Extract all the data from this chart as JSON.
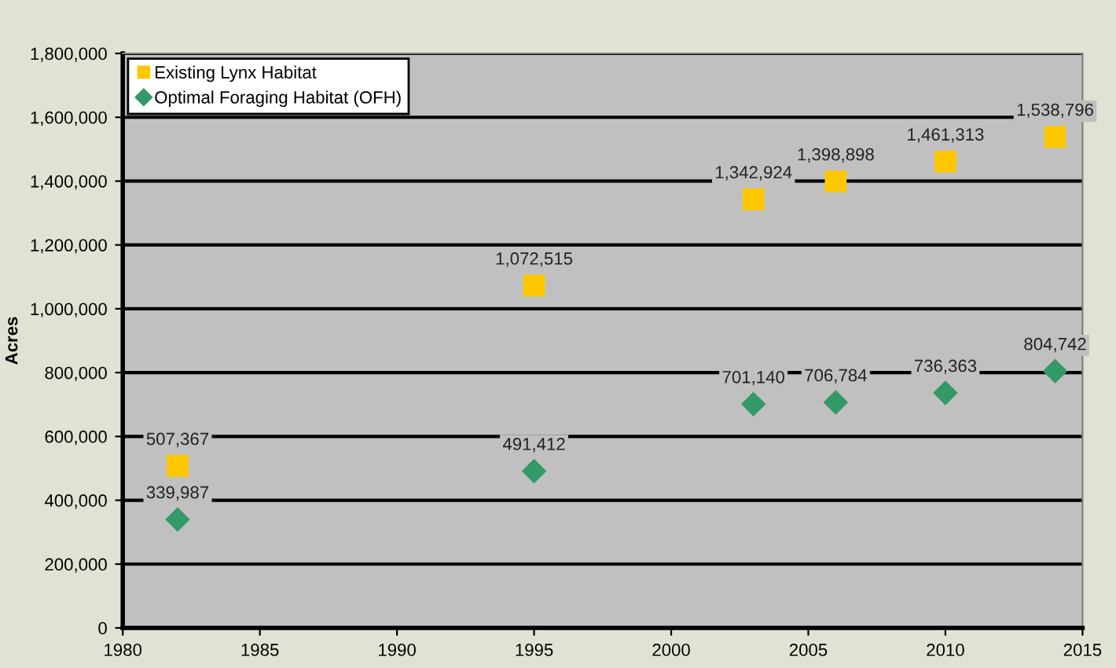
{
  "chart_data": {
    "type": "scatter",
    "ylabel": "Acres",
    "x": [
      1982,
      1995,
      2003,
      2006,
      2010,
      2014
    ],
    "series": [
      {
        "name": "Existing Lynx Habitat",
        "color": "#ffc800",
        "marker": "square",
        "values": [
          507367,
          1072515,
          1342924,
          1398898,
          1461313,
          1538796
        ],
        "value_labels": [
          "507,367",
          "1,072,515",
          "1,342,924",
          "1,398,898",
          "1,461,313",
          "1,538,796"
        ]
      },
      {
        "name": "Optimal Foraging Habitat (OFH)",
        "color": "#339966",
        "marker": "diamond",
        "values": [
          339987,
          491412,
          701140,
          706784,
          736363,
          804742
        ],
        "value_labels": [
          "339,987",
          "491,412",
          "701,140",
          "706,784",
          "736,363",
          "804,742"
        ]
      }
    ],
    "xlim": [
      1980,
      2015
    ],
    "xticks": [
      1980,
      1985,
      1990,
      1995,
      2000,
      2005,
      2010,
      2015
    ],
    "ylim": [
      0,
      1800000
    ],
    "yticks": [
      0,
      {
        "value": 200000,
        "label": "200,000"
      },
      {
        "value": 400000,
        "label": "400,000"
      },
      {
        "value": 600000,
        "label": "600,000"
      },
      {
        "value": 800000,
        "label": "800,000"
      },
      {
        "value": 1000000,
        "label": "1,000,000"
      },
      {
        "value": 1200000,
        "label": "1,200,000"
      },
      {
        "value": 1400000,
        "label": "1,400,000"
      },
      {
        "value": 1600000,
        "label": "1,600,000"
      },
      {
        "value": 1800000,
        "label": "1,800,000"
      }
    ],
    "grid": "y",
    "legend": "top left"
  }
}
